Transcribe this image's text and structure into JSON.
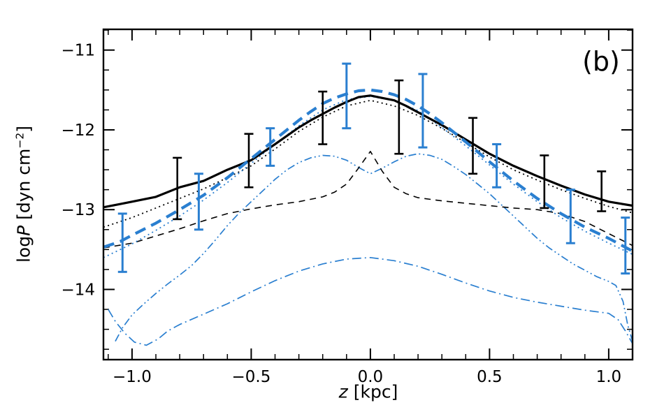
{
  "chart_data": {
    "type": "line",
    "title": "",
    "panel_label": "(b)",
    "xlabel_runs": [
      {
        "t": "z",
        "i": true
      },
      {
        "t": " [kpc]",
        "i": false
      }
    ],
    "ylabel_runs": [
      {
        "t": "log",
        "i": false
      },
      {
        "t": "P",
        "i": true
      },
      {
        "t": " [dyn cm",
        "i": false
      },
      {
        "t": "−2",
        "i": false,
        "sup": true
      },
      {
        "t": "]",
        "i": false
      }
    ],
    "x_range": [
      -1.12,
      1.1
    ],
    "y_range": [
      -14.88,
      -10.74
    ],
    "x_major_ticks": [
      {
        "v": -1.0,
        "label": "−1.0"
      },
      {
        "v": -0.5,
        "label": "−0.5"
      },
      {
        "v": 0.0,
        "label": "0.0"
      },
      {
        "v": 0.5,
        "label": "0.5"
      },
      {
        "v": 1.0,
        "label": "1.0"
      }
    ],
    "x_minor_step": 0.1,
    "y_major_ticks": [
      {
        "v": -11,
        "label": "−11"
      },
      {
        "v": -12,
        "label": "−12"
      },
      {
        "v": -13,
        "label": "−13"
      },
      {
        "v": -14,
        "label": "−14"
      }
    ],
    "y_minor_step": 0.25,
    "colors": {
      "black": "#000000",
      "blue": "#2a7fd0"
    },
    "grid": false,
    "legend": "none",
    "series": [
      {
        "name": "blue-dash-dot-dot",
        "color": "#2a7fd0",
        "width": 1.7,
        "dash": "11 4 2 4 2 4",
        "points": [
          [
            -1.07,
            -14.65
          ],
          [
            -1.04,
            -14.48
          ],
          [
            -1.0,
            -14.32
          ],
          [
            -0.95,
            -14.18
          ],
          [
            -0.9,
            -14.05
          ],
          [
            -0.85,
            -13.93
          ],
          [
            -0.8,
            -13.82
          ],
          [
            -0.75,
            -13.7
          ],
          [
            -0.7,
            -13.55
          ],
          [
            -0.65,
            -13.38
          ],
          [
            -0.6,
            -13.2
          ],
          [
            -0.55,
            -13.04
          ],
          [
            -0.5,
            -12.9
          ],
          [
            -0.45,
            -12.76
          ],
          [
            -0.4,
            -12.62
          ],
          [
            -0.35,
            -12.5
          ],
          [
            -0.3,
            -12.41
          ],
          [
            -0.25,
            -12.35
          ],
          [
            -0.2,
            -12.32
          ],
          [
            -0.15,
            -12.33
          ],
          [
            -0.1,
            -12.38
          ],
          [
            -0.05,
            -12.47
          ],
          [
            0.0,
            -12.55
          ],
          [
            0.05,
            -12.48
          ],
          [
            0.1,
            -12.4
          ],
          [
            0.15,
            -12.33
          ],
          [
            0.2,
            -12.3
          ],
          [
            0.25,
            -12.32
          ],
          [
            0.3,
            -12.37
          ],
          [
            0.35,
            -12.46
          ],
          [
            0.4,
            -12.56
          ],
          [
            0.45,
            -12.68
          ],
          [
            0.5,
            -12.8
          ],
          [
            0.55,
            -12.94
          ],
          [
            0.6,
            -13.08
          ],
          [
            0.65,
            -13.22
          ],
          [
            0.7,
            -13.36
          ],
          [
            0.75,
            -13.48
          ],
          [
            0.8,
            -13.58
          ],
          [
            0.85,
            -13.68
          ],
          [
            0.9,
            -13.76
          ],
          [
            0.95,
            -13.84
          ],
          [
            1.0,
            -13.9
          ],
          [
            1.03,
            -13.95
          ],
          [
            1.06,
            -14.15
          ],
          [
            1.08,
            -14.45
          ],
          [
            1.1,
            -14.65
          ]
        ]
      },
      {
        "name": "blue-dash-dot",
        "color": "#2a7fd0",
        "width": 1.7,
        "dash": "13 5 2 5",
        "points": [
          [
            -1.1,
            -14.25
          ],
          [
            -1.07,
            -14.4
          ],
          [
            -1.03,
            -14.55
          ],
          [
            -0.99,
            -14.66
          ],
          [
            -0.94,
            -14.7
          ],
          [
            -0.89,
            -14.62
          ],
          [
            -0.85,
            -14.52
          ],
          [
            -0.8,
            -14.44
          ],
          [
            -0.7,
            -14.31
          ],
          [
            -0.6,
            -14.18
          ],
          [
            -0.5,
            -14.03
          ],
          [
            -0.4,
            -13.89
          ],
          [
            -0.3,
            -13.77
          ],
          [
            -0.2,
            -13.68
          ],
          [
            -0.1,
            -13.62
          ],
          [
            0.0,
            -13.6
          ],
          [
            0.1,
            -13.64
          ],
          [
            0.2,
            -13.71
          ],
          [
            0.3,
            -13.81
          ],
          [
            0.4,
            -13.92
          ],
          [
            0.5,
            -14.02
          ],
          [
            0.6,
            -14.1
          ],
          [
            0.7,
            -14.16
          ],
          [
            0.8,
            -14.21
          ],
          [
            0.9,
            -14.26
          ],
          [
            1.0,
            -14.3
          ],
          [
            1.04,
            -14.38
          ],
          [
            1.07,
            -14.52
          ],
          [
            1.1,
            -14.68
          ]
        ]
      },
      {
        "name": "black-dashed",
        "color": "#000000",
        "width": 1.6,
        "dash": "9 7",
        "points": [
          [
            -1.12,
            -13.48
          ],
          [
            -1.0,
            -13.42
          ],
          [
            -0.9,
            -13.33
          ],
          [
            -0.8,
            -13.24
          ],
          [
            -0.7,
            -13.14
          ],
          [
            -0.6,
            -13.05
          ],
          [
            -0.5,
            -12.99
          ],
          [
            -0.4,
            -12.94
          ],
          [
            -0.3,
            -12.9
          ],
          [
            -0.2,
            -12.84
          ],
          [
            -0.15,
            -12.78
          ],
          [
            -0.1,
            -12.68
          ],
          [
            -0.05,
            -12.48
          ],
          [
            0.0,
            -12.27
          ],
          [
            0.05,
            -12.52
          ],
          [
            0.1,
            -12.72
          ],
          [
            0.15,
            -12.8
          ],
          [
            0.2,
            -12.85
          ],
          [
            0.3,
            -12.89
          ],
          [
            0.4,
            -12.92
          ],
          [
            0.5,
            -12.95
          ],
          [
            0.6,
            -12.98
          ],
          [
            0.7,
            -13.0
          ],
          [
            0.8,
            -13.05
          ],
          [
            0.9,
            -13.15
          ],
          [
            1.0,
            -13.3
          ],
          [
            1.1,
            -13.45
          ]
        ]
      },
      {
        "name": "black-dotted",
        "color": "#000000",
        "width": 1.8,
        "dash": "2 4.5",
        "points": [
          [
            -1.12,
            -13.22
          ],
          [
            -1.0,
            -13.1
          ],
          [
            -0.9,
            -12.98
          ],
          [
            -0.8,
            -12.86
          ],
          [
            -0.7,
            -12.74
          ],
          [
            -0.6,
            -12.6
          ],
          [
            -0.5,
            -12.45
          ],
          [
            -0.4,
            -12.24
          ],
          [
            -0.3,
            -12.02
          ],
          [
            -0.2,
            -11.84
          ],
          [
            -0.1,
            -11.7
          ],
          [
            0.0,
            -11.63
          ],
          [
            0.1,
            -11.7
          ],
          [
            0.2,
            -11.82
          ],
          [
            0.3,
            -11.98
          ],
          [
            0.4,
            -12.16
          ],
          [
            0.5,
            -12.34
          ],
          [
            0.6,
            -12.5
          ],
          [
            0.7,
            -12.63
          ],
          [
            0.8,
            -12.75
          ],
          [
            0.9,
            -12.86
          ],
          [
            1.0,
            -12.96
          ],
          [
            1.1,
            -13.04
          ]
        ]
      },
      {
        "name": "blue-dotted",
        "color": "#2a7fd0",
        "width": 1.8,
        "dash": "2 4.5",
        "points": [
          [
            -1.12,
            -13.6
          ],
          [
            -1.0,
            -13.43
          ],
          [
            -0.9,
            -13.26
          ],
          [
            -0.8,
            -13.08
          ],
          [
            -0.7,
            -12.88
          ],
          [
            -0.6,
            -12.66
          ],
          [
            -0.5,
            -12.42
          ],
          [
            -0.4,
            -12.18
          ],
          [
            -0.3,
            -11.95
          ],
          [
            -0.2,
            -11.75
          ],
          [
            -0.1,
            -11.62
          ],
          [
            0.0,
            -11.58
          ],
          [
            0.1,
            -11.63
          ],
          [
            0.2,
            -11.76
          ],
          [
            0.3,
            -11.97
          ],
          [
            0.4,
            -12.2
          ],
          [
            0.5,
            -12.44
          ],
          [
            0.6,
            -12.68
          ],
          [
            0.7,
            -12.9
          ],
          [
            0.8,
            -13.1
          ],
          [
            0.9,
            -13.27
          ],
          [
            1.0,
            -13.42
          ],
          [
            1.1,
            -13.56
          ]
        ]
      },
      {
        "name": "total-pressure-black-solid",
        "color": "#000000",
        "width": 3.2,
        "dash": "",
        "points": [
          [
            -1.12,
            -12.97
          ],
          [
            -1.05,
            -12.93
          ],
          [
            -1.0,
            -12.9
          ],
          [
            -0.9,
            -12.84
          ],
          [
            -0.8,
            -12.72
          ],
          [
            -0.7,
            -12.64
          ],
          [
            -0.6,
            -12.5
          ],
          [
            -0.5,
            -12.38
          ],
          [
            -0.4,
            -12.18
          ],
          [
            -0.3,
            -11.97
          ],
          [
            -0.25,
            -11.88
          ],
          [
            -0.2,
            -11.8
          ],
          [
            -0.15,
            -11.72
          ],
          [
            -0.1,
            -11.65
          ],
          [
            -0.05,
            -11.59
          ],
          [
            0.0,
            -11.57
          ],
          [
            0.05,
            -11.6
          ],
          [
            0.1,
            -11.63
          ],
          [
            0.15,
            -11.7
          ],
          [
            0.2,
            -11.78
          ],
          [
            0.3,
            -11.94
          ],
          [
            0.4,
            -12.12
          ],
          [
            0.5,
            -12.3
          ],
          [
            0.6,
            -12.45
          ],
          [
            0.7,
            -12.58
          ],
          [
            0.8,
            -12.7
          ],
          [
            0.9,
            -12.81
          ],
          [
            1.0,
            -12.9
          ],
          [
            1.1,
            -12.95
          ]
        ]
      },
      {
        "name": "blue-thick-dashed",
        "color": "#2a7fd0",
        "width": 4.2,
        "dash": "16 9",
        "points": [
          [
            -1.12,
            -13.47
          ],
          [
            -1.05,
            -13.4
          ],
          [
            -1.0,
            -13.32
          ],
          [
            -0.9,
            -13.17
          ],
          [
            -0.8,
            -13.0
          ],
          [
            -0.7,
            -12.82
          ],
          [
            -0.6,
            -12.6
          ],
          [
            -0.5,
            -12.36
          ],
          [
            -0.4,
            -12.12
          ],
          [
            -0.3,
            -11.88
          ],
          [
            -0.25,
            -11.77
          ],
          [
            -0.2,
            -11.67
          ],
          [
            -0.15,
            -11.6
          ],
          [
            -0.1,
            -11.55
          ],
          [
            -0.05,
            -11.51
          ],
          [
            0.0,
            -11.5
          ],
          [
            0.05,
            -11.52
          ],
          [
            0.1,
            -11.56
          ],
          [
            0.15,
            -11.62
          ],
          [
            0.2,
            -11.7
          ],
          [
            0.25,
            -11.8
          ],
          [
            0.3,
            -11.91
          ],
          [
            0.4,
            -12.15
          ],
          [
            0.5,
            -12.4
          ],
          [
            0.6,
            -12.64
          ],
          [
            0.7,
            -12.86
          ],
          [
            0.8,
            -13.05
          ],
          [
            0.9,
            -13.22
          ],
          [
            1.0,
            -13.36
          ],
          [
            1.1,
            -13.52
          ]
        ]
      }
    ],
    "error_bars": [
      {
        "name": "black-error-bars",
        "color": "#000000",
        "width": 2.6,
        "cap": 13,
        "points": [
          {
            "z": -0.81,
            "lo": -13.12,
            "hi": -12.35
          },
          {
            "z": -0.51,
            "lo": -12.72,
            "hi": -12.05
          },
          {
            "z": -0.2,
            "lo": -12.18,
            "hi": -11.52
          },
          {
            "z": 0.12,
            "lo": -12.3,
            "hi": -11.38
          },
          {
            "z": 0.43,
            "lo": -12.55,
            "hi": -11.85
          },
          {
            "z": 0.73,
            "lo": -12.98,
            "hi": -12.32
          },
          {
            "z": 0.97,
            "lo": -13.02,
            "hi": -12.52
          }
        ]
      },
      {
        "name": "blue-error-bars",
        "color": "#2a7fd0",
        "width": 3.0,
        "cap": 13,
        "points": [
          {
            "z": -1.04,
            "lo": -13.78,
            "hi": -13.05
          },
          {
            "z": -0.72,
            "lo": -13.25,
            "hi": -12.55
          },
          {
            "z": -0.42,
            "lo": -12.45,
            "hi": -11.98
          },
          {
            "z": -0.1,
            "lo": -11.98,
            "hi": -11.17
          },
          {
            "z": 0.22,
            "lo": -12.22,
            "hi": -11.3
          },
          {
            "z": 0.53,
            "lo": -12.72,
            "hi": -12.18
          },
          {
            "z": 0.84,
            "lo": -13.42,
            "hi": -12.75
          },
          {
            "z": 1.07,
            "lo": -13.8,
            "hi": -13.1
          }
        ]
      }
    ]
  }
}
